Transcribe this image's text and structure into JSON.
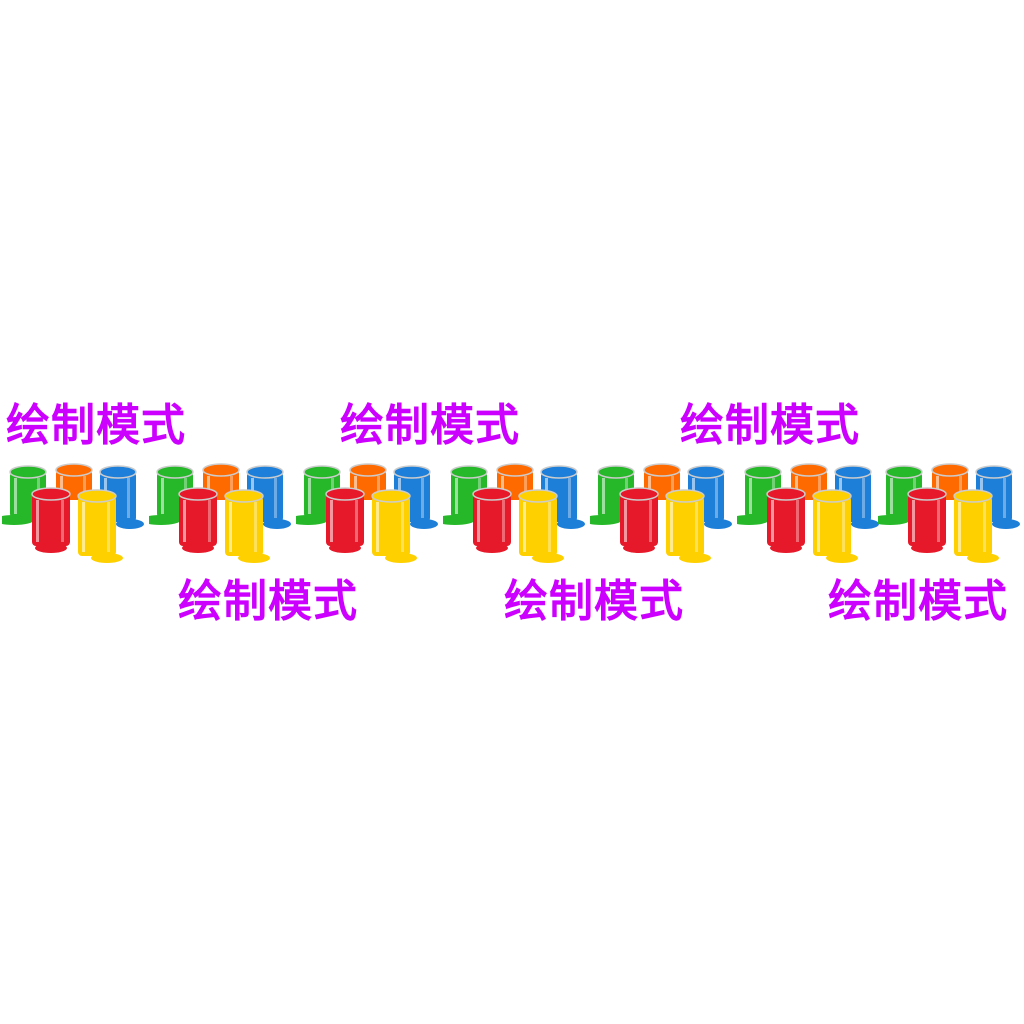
{
  "label_text": "绘制模式",
  "label_color": "#cc00ff",
  "paint_icon": "paint-cans-icon",
  "paint_colors": {
    "green": "#27b82a",
    "orange": "#ff6a00",
    "blue": "#1e7fd9",
    "red": "#e6192a",
    "yellow": "#ffd000"
  }
}
